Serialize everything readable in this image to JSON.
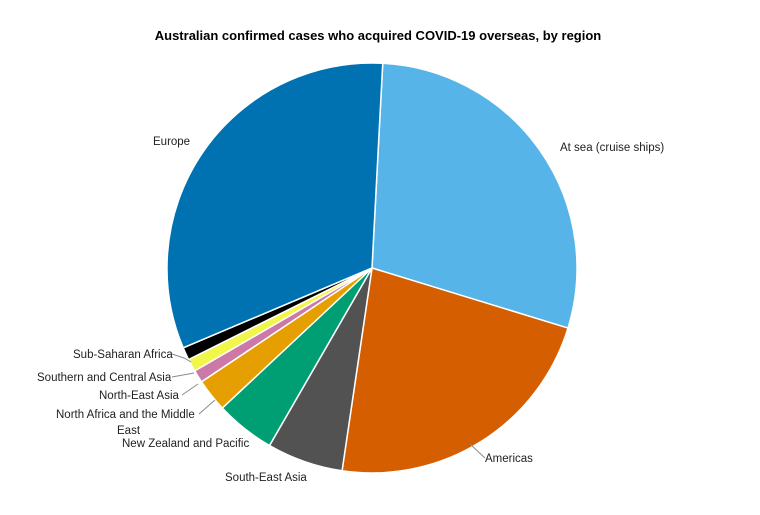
{
  "chart_data": {
    "type": "pie",
    "title": "Australian confirmed cases who acquired COVID-19 overseas, by region",
    "slices": [
      {
        "label": "At sea (cruise ships)",
        "value": 28.9,
        "color": "#56B4E9"
      },
      {
        "label": "Americas",
        "value": 22.6,
        "color": "#D55E00"
      },
      {
        "label": "South-East Asia",
        "value": 6.0,
        "color": "#525252"
      },
      {
        "label": "New Zealand and Pacific",
        "value": 4.7,
        "color": "#009E73"
      },
      {
        "label": "North Africa and the Middle East",
        "value": 2.6,
        "color": "#E69F00"
      },
      {
        "label": "North-East Asia",
        "value": 1.0,
        "color": "#CC79A7"
      },
      {
        "label": "Southern and Central Asia",
        "value": 1.0,
        "color": "#F0F64A"
      },
      {
        "label": "Sub-Saharan Africa",
        "value": 1.0,
        "color": "#000000"
      },
      {
        "label": "Europe",
        "value": 32.2,
        "color": "#0072B2"
      }
    ]
  }
}
